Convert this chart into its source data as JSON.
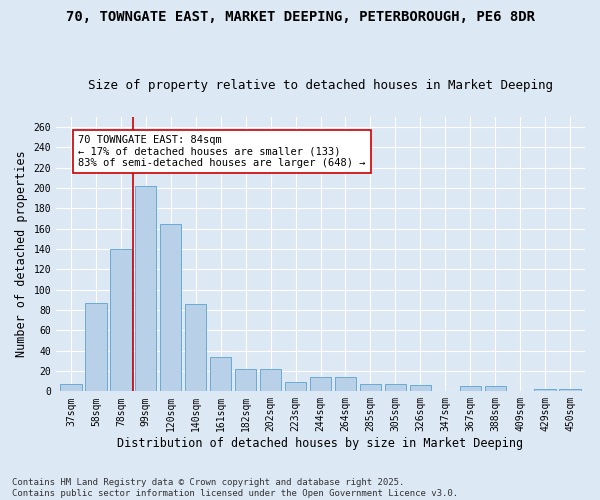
{
  "title_line1": "70, TOWNGATE EAST, MARKET DEEPING, PETERBOROUGH, PE6 8DR",
  "title_line2": "Size of property relative to detached houses in Market Deeping",
  "xlabel": "Distribution of detached houses by size in Market Deeping",
  "ylabel": "Number of detached properties",
  "categories": [
    "37sqm",
    "58sqm",
    "78sqm",
    "99sqm",
    "120sqm",
    "140sqm",
    "161sqm",
    "182sqm",
    "202sqm",
    "223sqm",
    "244sqm",
    "264sqm",
    "285sqm",
    "305sqm",
    "326sqm",
    "347sqm",
    "367sqm",
    "388sqm",
    "409sqm",
    "429sqm",
    "450sqm"
  ],
  "values": [
    7,
    87,
    140,
    202,
    165,
    86,
    34,
    22,
    22,
    9,
    14,
    14,
    7,
    7,
    6,
    0,
    5,
    5,
    0,
    2,
    2
  ],
  "bar_color": "#b8d0e8",
  "bar_edgecolor": "#6aaad4",
  "background_color": "#dde8f5",
  "vline_x": 2.5,
  "vline_color": "#cc0000",
  "annotation_text": "70 TOWNGATE EAST: 84sqm\n← 17% of detached houses are smaller (133)\n83% of semi-detached houses are larger (648) →",
  "annotation_box_facecolor": "#ffffff",
  "annotation_box_edgecolor": "#cc0000",
  "annotation_fontsize": 7.5,
  "footer_line1": "Contains HM Land Registry data © Crown copyright and database right 2025.",
  "footer_line2": "Contains public sector information licensed under the Open Government Licence v3.0.",
  "ylim": [
    0,
    270
  ],
  "yticks": [
    0,
    20,
    40,
    60,
    80,
    100,
    120,
    140,
    160,
    180,
    200,
    220,
    240,
    260
  ],
  "title_fontsize": 10,
  "subtitle_fontsize": 9,
  "axis_label_fontsize": 8.5,
  "tick_fontsize": 7,
  "footer_fontsize": 6.5
}
